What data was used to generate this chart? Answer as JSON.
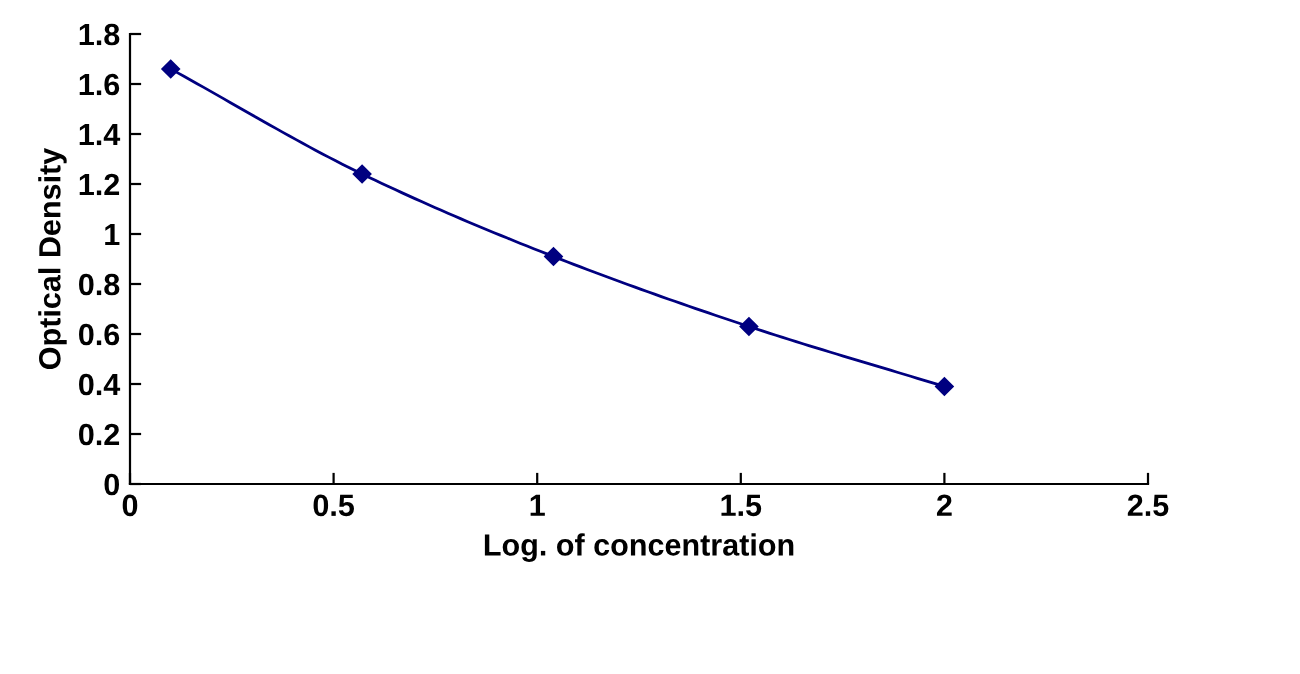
{
  "chart_data": {
    "type": "line",
    "xlabel": "Log. of concentration",
    "ylabel": "Optical Density",
    "series": [
      {
        "color": "#000080",
        "x": [
          0.1,
          0.57,
          1.04,
          1.52,
          2.0
        ],
        "values": [
          1.66,
          1.24,
          0.91,
          0.63,
          0.39
        ]
      }
    ],
    "xlim": [
      0,
      2.5
    ],
    "xticks": [
      0,
      0.5,
      1,
      1.5,
      2,
      2.5
    ],
    "ylim": [
      0,
      1.8
    ],
    "yticks": [
      0,
      0.2,
      0.4,
      0.6,
      0.8,
      1,
      1.2,
      1.4,
      1.6,
      1.8
    ],
    "marker": "diamond",
    "line_style": "solid",
    "grid": false,
    "legend": false
  }
}
